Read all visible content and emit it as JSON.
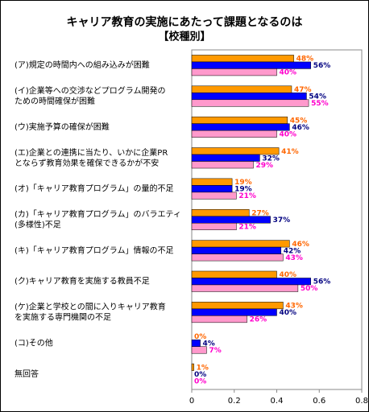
{
  "chart_data": {
    "type": "barh",
    "title": "キャリア教育の実施にあたって課題となるのは",
    "subtitle": "【校種別】",
    "categories": [
      [
        "(ア)規定の時間内への組み込みが困難"
      ],
      [
        "(イ)企業等への交渉などプログラム開発の",
        "ための時間確保が困難"
      ],
      [
        "(ウ)実施予算の確保が困難"
      ],
      [
        "(エ)企業との連携に当たり、いかに企業PR",
        "とならず教育効果を確保できるかが不安"
      ],
      [
        "(オ)「キャリア教育プログラム」の量的不足"
      ],
      [
        "(カ)「キャリア教育プログラム」のバラエティ",
        "(多様性)不足"
      ],
      [
        "(キ)「キャリア教育プログラム」情報の不足"
      ],
      [
        "(ク)キャリア教育を実施する教員不足"
      ],
      [
        "(ケ)企業と学校との間に入りキャリア教育",
        "を実施する専門機関の不足"
      ],
      [
        "(コ)その他"
      ],
      [
        "無回答"
      ]
    ],
    "series": [
      {
        "color": "#ff9900",
        "label_color": "#ff6600",
        "values": [
          0.48,
          0.47,
          0.45,
          0.41,
          0.19,
          0.27,
          0.46,
          0.4,
          0.43,
          0.0,
          0.01
        ],
        "value_labels": [
          "48%",
          "47%",
          "45%",
          "41%",
          "19%",
          "27%",
          "46%",
          "40%",
          "43%",
          "0%",
          "1%"
        ]
      },
      {
        "color": "#0000ff",
        "label_color": "#000080",
        "values": [
          0.56,
          0.54,
          0.46,
          0.32,
          0.19,
          0.37,
          0.42,
          0.56,
          0.4,
          0.04,
          0.0
        ],
        "value_labels": [
          "56%",
          "54%",
          "46%",
          "32%",
          "19%",
          "37%",
          "42%",
          "56%",
          "40%",
          "4%",
          "0%"
        ]
      },
      {
        "color": "#ff99cc",
        "label_color": "#ff00cc",
        "values": [
          0.4,
          0.55,
          0.4,
          0.29,
          0.21,
          0.21,
          0.43,
          0.5,
          0.26,
          0.07,
          0.0
        ],
        "value_labels": [
          "40%",
          "55%",
          "40%",
          "29%",
          "21%",
          "21%",
          "43%",
          "50%",
          "26%",
          "7%",
          "0%"
        ]
      }
    ],
    "xlim": [
      0,
      0.8
    ],
    "xticks": [
      0,
      0.2,
      0.4,
      0.6,
      0.8
    ],
    "grid": false
  }
}
